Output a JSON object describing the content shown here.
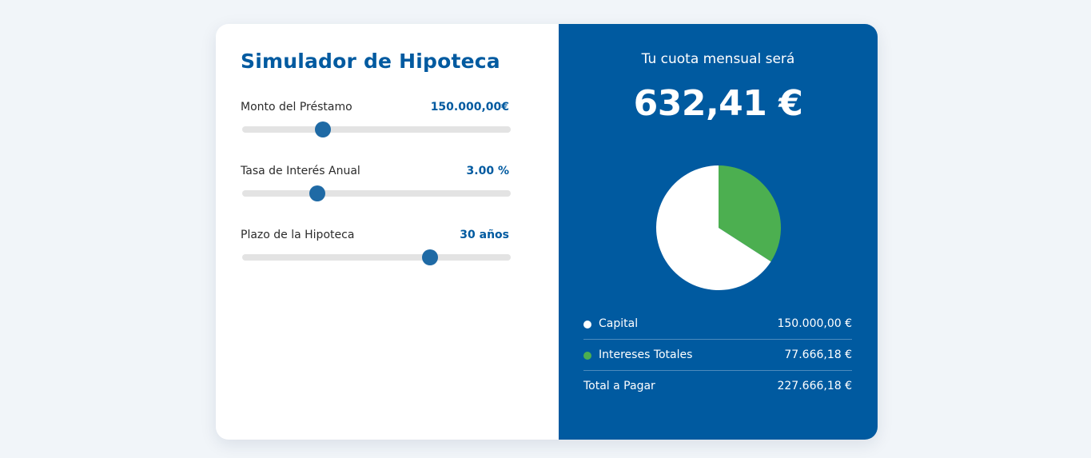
{
  "simulator": {
    "title": "Simulador de Hipoteca",
    "fields": [
      {
        "label": "Monto del Préstamo",
        "value": "150.000,00€",
        "slider_fraction": 0.3
      },
      {
        "label": "Tasa de Interés Anual",
        "value": "3.00 %",
        "slider_fraction": 0.28
      },
      {
        "label": "Plazo de la Hipoteca",
        "value": "30 años",
        "slider_fraction": 0.7
      }
    ]
  },
  "result": {
    "monthly_label": "Tu cuota mensual será",
    "monthly_amount": "632,41 €",
    "legend": [
      {
        "label": "Capital",
        "value": "150.000,00 €",
        "color": "#ffffff"
      },
      {
        "label": "Intereses Totales",
        "value": "77.666,18 €",
        "color": "#4caf50"
      },
      {
        "label": "Total a Pagar",
        "value": "227.666,18 €"
      }
    ]
  },
  "chart_data": {
    "type": "pie",
    "series": [
      {
        "name": "Capital",
        "values": [
          150000.0
        ],
        "color": "#ffffff"
      },
      {
        "name": "Intereses Totales",
        "values": [
          77666.18
        ],
        "color": "#4caf50"
      }
    ]
  },
  "colors": {
    "brand": "#005aa0",
    "slider_thumb": "#1f6aa5",
    "slider_track": "#e3e3e3",
    "interest_green": "#4caf50",
    "background": "#f1f5f9"
  }
}
